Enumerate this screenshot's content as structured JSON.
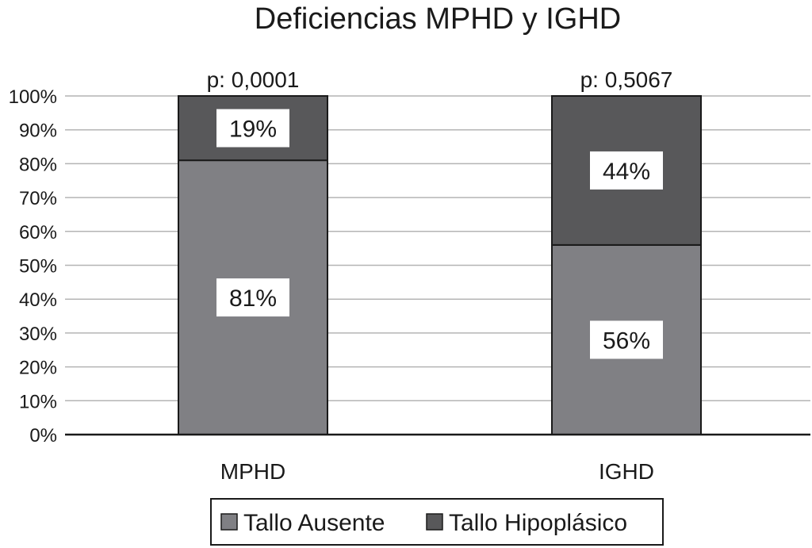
{
  "chart_data": {
    "type": "bar",
    "stacked": true,
    "title": "Deficiencias MPHD y IGHD",
    "categories": [
      "MPHD",
      "IGHD"
    ],
    "annotations": [
      "p: 0,0001",
      "p: 0,5067"
    ],
    "series": [
      {
        "name": "Tallo Ausente",
        "values": [
          81,
          56
        ],
        "labels": [
          "81%",
          "56%"
        ],
        "color": "#808084"
      },
      {
        "name": "Tallo Hipoplásico",
        "values": [
          19,
          44
        ],
        "labels": [
          "19%",
          "44%"
        ],
        "color": "#58585a"
      }
    ],
    "yticks": [
      "0%",
      "10%",
      "20%",
      "30%",
      "40%",
      "50%",
      "60%",
      "70%",
      "80%",
      "90%",
      "100%"
    ],
    "ylim": [
      0,
      100
    ],
    "grid": true,
    "legend": "bottom"
  }
}
